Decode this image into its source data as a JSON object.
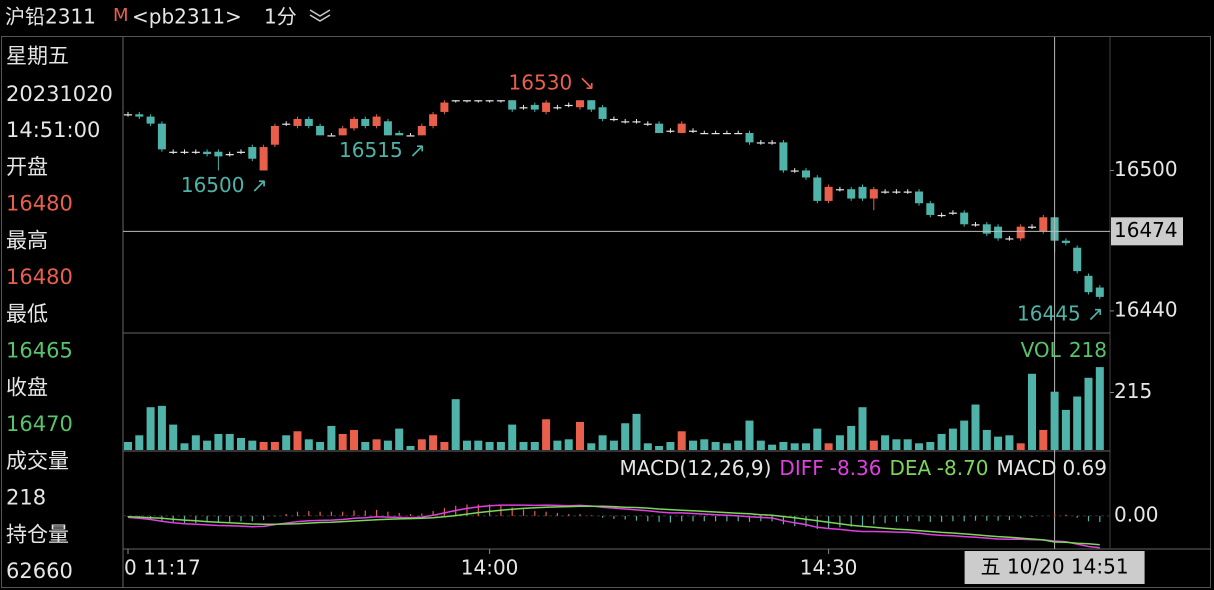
{
  "header": {
    "symbol": "沪铅2311",
    "flag": "M",
    "code": "<pb2311>",
    "period": "1分"
  },
  "sidebar": {
    "weekday": "星期五",
    "date": "20231020",
    "time": "14:51:00",
    "fields": [
      {
        "label": "开盘",
        "value": "16480",
        "color": "#e8604c"
      },
      {
        "label": "最高",
        "value": "16480",
        "color": "#e8604c"
      },
      {
        "label": "最低",
        "value": "16465",
        "color": "#58c46a"
      },
      {
        "label": "收盘",
        "value": "16470",
        "color": "#58c46a"
      },
      {
        "label": "成交量",
        "value": "218",
        "color": "#e6e6e6"
      },
      {
        "label": "持仓量",
        "value": "62660",
        "color": "#e6e6e6"
      }
    ]
  },
  "chart_data": [
    {
      "type": "candlestick",
      "categories": [
        "0 11:17",
        null,
        null,
        null,
        null,
        null,
        null,
        null,
        null,
        null,
        null,
        null,
        null,
        null,
        null,
        null,
        null,
        null,
        null,
        null,
        null,
        null,
        null,
        null,
        null,
        null,
        null,
        null,
        null,
        null,
        null,
        null,
        "14:00",
        null,
        null,
        null,
        null,
        null,
        null,
        null,
        null,
        null,
        null,
        null,
        null,
        null,
        null,
        null,
        null,
        null,
        null,
        null,
        null,
        null,
        null,
        null,
        null,
        null,
        null,
        null,
        null,
        null,
        "14:30",
        null,
        null,
        null,
        null,
        null,
        null,
        null,
        null,
        null,
        null,
        null,
        null,
        null,
        null,
        null,
        null,
        null,
        null,
        null,
        null,
        null,
        null,
        null,
        null
      ],
      "open": [
        16524,
        16524,
        16523,
        16520,
        16508,
        16508,
        16508,
        16508,
        16508,
        16507,
        16508,
        16510,
        16500,
        16511,
        16520,
        16519,
        16522,
        16519,
        16515,
        16515,
        16518,
        16522,
        16519,
        16521,
        16516,
        16515,
        16515,
        16519,
        16525,
        16530,
        16530,
        16530,
        16530,
        16530,
        16530,
        16527,
        16528,
        16525,
        16527,
        16528,
        16527,
        16530,
        16527,
        16522,
        16521,
        16521,
        16520,
        16520,
        16517,
        16516,
        16517,
        16516,
        16516,
        16516,
        16516,
        16516,
        16512,
        16512,
        16512,
        16500,
        16500,
        16497,
        16487,
        16492,
        16492,
        16493,
        16488,
        16491,
        16491,
        16491,
        16491,
        16486,
        16481,
        16482,
        16482,
        16477,
        16477,
        16476,
        16471,
        16471,
        16476,
        16474,
        16480,
        16470,
        16467,
        16455,
        16450
      ],
      "high": [
        16525,
        16525,
        16524,
        16521,
        16509,
        16509,
        16509,
        16509,
        16509,
        16508,
        16509,
        16511,
        16511,
        16520,
        16521,
        16523,
        16523,
        16520,
        16516,
        16519,
        16523,
        16523,
        16524,
        16522,
        16517,
        16516,
        16520,
        16525,
        16530,
        16530,
        16530,
        16530,
        16530,
        16530,
        16530,
        16528,
        16529,
        16530,
        16528,
        16529,
        16530,
        16530,
        16528,
        16523,
        16522,
        16522,
        16521,
        16521,
        16518,
        16521,
        16518,
        16517,
        16517,
        16517,
        16517,
        16517,
        16513,
        16513,
        16513,
        16501,
        16501,
        16498,
        16494,
        16493,
        16493,
        16494,
        16493,
        16492,
        16492,
        16492,
        16492,
        16487,
        16482,
        16483,
        16483,
        16478,
        16478,
        16477,
        16472,
        16477,
        16477,
        16481,
        16480,
        16471,
        16468,
        16456,
        16451
      ],
      "low": [
        16523,
        16522,
        16519,
        16508,
        16507,
        16507,
        16507,
        16506,
        16500,
        16506,
        16507,
        16504,
        16500,
        16510,
        16519,
        16518,
        16518,
        16515,
        16515,
        16515,
        16517,
        16518,
        16518,
        16515,
        16515,
        16515,
        16515,
        16518,
        16524,
        16529,
        16529,
        16529,
        16529,
        16529,
        16525,
        16526,
        16525,
        16524,
        16526,
        16527,
        16526,
        16525,
        16521,
        16521,
        16520,
        16520,
        16519,
        16516,
        16516,
        16516,
        16516,
        16516,
        16516,
        16516,
        16516,
        16511,
        16511,
        16511,
        16499,
        16499,
        16496,
        16486,
        16486,
        16491,
        16487,
        16487,
        16483,
        16490,
        16490,
        16490,
        16485,
        16480,
        16480,
        16481,
        16476,
        16476,
        16472,
        16470,
        16470,
        16470,
        16475,
        16473,
        16465,
        16468,
        16456,
        16447,
        16445
      ],
      "close": [
        16524,
        16523,
        16520,
        16509,
        16508,
        16508,
        16508,
        16507,
        16506,
        16507,
        16508,
        16505,
        16510,
        16519,
        16520,
        16522,
        16519,
        16515,
        16515,
        16518,
        16522,
        16519,
        16523,
        16515,
        16515,
        16515,
        16519,
        16524,
        16529,
        16530,
        16530,
        16530,
        16530,
        16530,
        16526,
        16527,
        16526,
        16529,
        16527,
        16528,
        16530,
        16526,
        16522,
        16522,
        16521,
        16521,
        16520,
        16516,
        16517,
        16520,
        16517,
        16516,
        16516,
        16516,
        16516,
        16512,
        16512,
        16512,
        16500,
        16500,
        16497,
        16487,
        16493,
        16492,
        16488,
        16488,
        16492,
        16491,
        16491,
        16491,
        16486,
        16481,
        16481,
        16482,
        16477,
        16477,
        16473,
        16471,
        16471,
        16476,
        16476,
        16480,
        16470,
        16469,
        16457,
        16448,
        16446
      ],
      "up_color": "#e8604c",
      "down_color": "#4fb3a9",
      "doji_color": "#e6e6e6",
      "ylim": [
        16431,
        16557
      ],
      "yticks": [
        16500,
        16440
      ],
      "crosshair_y": 16474,
      "crosshair_x_label": "五 10/20 14:51",
      "annotations": [
        {
          "value": 16500,
          "label": "16500 ↗"
        },
        {
          "value": 16515,
          "label": "16515 ↗"
        },
        {
          "value": 16530,
          "label": "16530 ↘"
        },
        {
          "value": 16445,
          "label": "16445 ↗"
        }
      ]
    },
    {
      "type": "bar",
      "values": [
        30,
        55,
        160,
        165,
        95,
        25,
        55,
        35,
        60,
        60,
        45,
        35,
        30,
        30,
        55,
        70,
        40,
        30,
        90,
        60,
        75,
        30,
        40,
        35,
        80,
        15,
        40,
        55,
        30,
        190,
        35,
        35,
        30,
        30,
        95,
        30,
        30,
        115,
        35,
        40,
        105,
        25,
        55,
        35,
        100,
        135,
        25,
        15,
        30,
        70,
        35,
        40,
        30,
        25,
        35,
        110,
        35,
        20,
        30,
        25,
        25,
        80,
        25,
        55,
        90,
        160,
        35,
        55,
        40,
        40,
        25,
        30,
        60,
        80,
        110,
        170,
        75,
        50,
        55,
        25,
        285,
        75,
        218,
        150,
        200,
        270,
        310
      ],
      "ylim": [
        0,
        430
      ],
      "yticks": [
        215
      ],
      "legend": {
        "name": "VOL",
        "value": 218
      },
      "legend_color": "#58c46a"
    },
    {
      "type": "macd",
      "title": "MACD(12,26,9)",
      "series": [
        {
          "name": "DIFF",
          "color": "#e040e0",
          "value": -8.36,
          "values": [
            -0.5,
            -0.8,
            -1.2,
            -1.8,
            -2.3,
            -2.6,
            -2.8,
            -3.0,
            -3.2,
            -3.3,
            -3.4,
            -3.6,
            -3.5,
            -2.9,
            -2.4,
            -1.9,
            -1.6,
            -1.5,
            -1.4,
            -1.2,
            -0.8,
            -0.6,
            -0.3,
            -0.4,
            -0.5,
            -0.6,
            -0.4,
            0.2,
            1.0,
            1.8,
            2.5,
            3.0,
            3.4,
            3.6,
            3.6,
            3.6,
            3.5,
            3.6,
            3.5,
            3.4,
            3.5,
            3.3,
            2.9,
            2.6,
            2.3,
            2.0,
            1.7,
            1.3,
            1.0,
            1.0,
            0.8,
            0.6,
            0.4,
            0.2,
            0.0,
            -0.3,
            -0.5,
            -0.7,
            -1.6,
            -2.3,
            -2.9,
            -3.8,
            -4.2,
            -4.5,
            -4.9,
            -5.2,
            -5.2,
            -5.3,
            -5.4,
            -5.5,
            -5.8,
            -6.2,
            -6.5,
            -6.6,
            -6.9,
            -7.1,
            -7.4,
            -7.7,
            -7.8,
            -7.8,
            -7.9,
            -8.0,
            -8.36,
            -8.6,
            -9.4,
            -10.2,
            -10.6
          ]
        },
        {
          "name": "DEA",
          "color": "#7cd65a",
          "value": -8.7,
          "value_label": "-8.70",
          "values": [
            -0.3,
            -0.4,
            -0.6,
            -0.8,
            -1.1,
            -1.4,
            -1.6,
            -1.9,
            -2.1,
            -2.3,
            -2.5,
            -2.7,
            -2.8,
            -2.8,
            -2.7,
            -2.6,
            -2.4,
            -2.2,
            -2.1,
            -1.9,
            -1.7,
            -1.5,
            -1.3,
            -1.1,
            -1.0,
            -0.9,
            -0.8,
            -0.6,
            -0.3,
            0.1,
            0.6,
            1.1,
            1.5,
            1.9,
            2.2,
            2.5,
            2.7,
            2.9,
            3.0,
            3.1,
            3.2,
            3.2,
            3.2,
            3.1,
            2.9,
            2.8,
            2.6,
            2.3,
            2.1,
            1.9,
            1.7,
            1.5,
            1.3,
            1.1,
            0.9,
            0.7,
            0.4,
            0.2,
            -0.2,
            -0.6,
            -1.1,
            -1.6,
            -2.1,
            -2.6,
            -3.1,
            -3.5,
            -3.8,
            -4.1,
            -4.4,
            -4.6,
            -4.9,
            -5.2,
            -5.5,
            -5.7,
            -6.0,
            -6.3,
            -6.6,
            -6.9,
            -7.1,
            -7.4,
            -7.7,
            -8.0,
            -8.7,
            -8.8,
            -9.1,
            -9.3,
            -9.6
          ]
        },
        {
          "name": "MACD",
          "color": "#e6e6e6",
          "value": 0.69,
          "values": [
            -0.4,
            -0.8,
            -1.2,
            -2.0,
            -2.4,
            -2.4,
            -2.4,
            -2.2,
            -2.2,
            -2.0,
            -1.8,
            -1.8,
            -1.4,
            -0.2,
            0.6,
            1.4,
            1.6,
            1.4,
            1.4,
            1.4,
            1.8,
            1.8,
            2.0,
            1.4,
            1.0,
            0.6,
            0.8,
            1.6,
            2.6,
            3.4,
            3.8,
            3.8,
            3.8,
            3.4,
            2.8,
            2.2,
            1.6,
            1.4,
            1.0,
            0.6,
            0.6,
            0.2,
            -0.6,
            -1.0,
            -1.2,
            -1.6,
            -1.8,
            -2.0,
            -2.2,
            -1.8,
            -1.8,
            -1.8,
            -1.8,
            -1.8,
            -1.8,
            -2.0,
            -1.8,
            -1.8,
            -2.8,
            -3.4,
            -3.6,
            -4.4,
            -4.2,
            -3.8,
            -3.6,
            -3.4,
            -2.8,
            -2.4,
            -2.0,
            -1.8,
            -1.8,
            -2.0,
            -2.0,
            -1.8,
            -1.8,
            -1.6,
            -1.6,
            -1.6,
            -1.4,
            -0.8,
            -0.4,
            0.0,
            0.69,
            0.4,
            -0.6,
            -1.8,
            -2.0
          ]
        }
      ],
      "up_color": "#e8604c",
      "down_color": "#4fb3a9",
      "ylim": [
        -10.7,
        20.3
      ],
      "yticks": [
        {
          "value": 0,
          "label": "0.00"
        }
      ]
    }
  ]
}
